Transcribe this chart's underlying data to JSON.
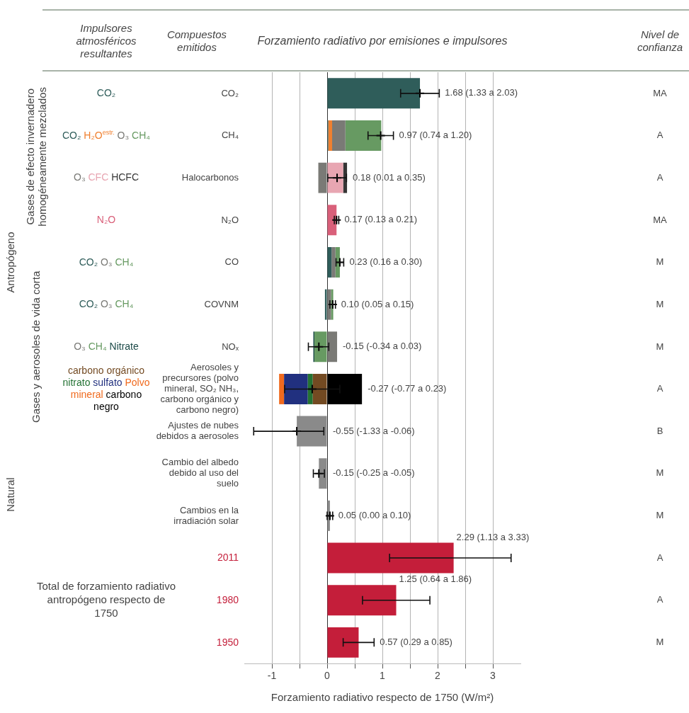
{
  "chart_data": {
    "type": "bar",
    "orientation": "horizontal",
    "stacked": true,
    "title": "Forzamiento radiativo por emisiones e impulsores",
    "xlabel": "Forzamiento radiativo respecto de 1750 (W/m²)",
    "categories": [
      "CO₂",
      "CH₄",
      "Halocarbonos",
      "N₂O",
      "CO",
      "COVNM",
      "NOₓ",
      "Aerosoles y precursores (polvo mineral, SO₂ NH₃, carbono orgánico y carbono negro)",
      "Ajustes de nubes debidos a aerosoles",
      "Cambio del albedo debido al uso del suelo",
      "Cambios en la irradiación solar",
      null,
      null,
      null
    ],
    "series": [
      {
        "name": "CO₂",
        "color": "#2f5d5a",
        "values": [
          1.68,
          0.02,
          null,
          null,
          0.08,
          -0.04,
          null,
          null,
          null,
          null,
          null,
          null,
          null,
          null
        ]
      },
      {
        "name": "H₂O$^{estr.}$",
        "color": "#f08030",
        "values": [
          null,
          0.07,
          null,
          null,
          null,
          null,
          null,
          null,
          null,
          null,
          null,
          null,
          null,
          null
        ]
      },
      {
        "name": "O₃",
        "color": "#7a7a76",
        "values": [
          null,
          0.24,
          -0.16,
          null,
          0.07,
          0.07,
          0.18,
          null,
          null,
          null,
          null,
          null,
          null,
          null
        ]
      },
      {
        "name": "CH₄",
        "color": "#679a62",
        "values": [
          null,
          0.65,
          null,
          null,
          0.08,
          0.04,
          -0.23,
          null,
          null,
          null,
          null,
          null,
          null,
          null
        ]
      },
      {
        "name": "CFC",
        "color": "#e8a6b2",
        "values": [
          null,
          null,
          0.29,
          null,
          null,
          null,
          null,
          null,
          null,
          null,
          null,
          null,
          null,
          null
        ]
      },
      {
        "name": "HCFC",
        "color": "#363636",
        "values": [
          null,
          null,
          0.07,
          null,
          null,
          null,
          null,
          null,
          null,
          null,
          null,
          null,
          null,
          null
        ]
      },
      {
        "name": "N₂O",
        "color": "#d9607a",
        "values": [
          null,
          null,
          null,
          0.17,
          null,
          null,
          null,
          null,
          null,
          null,
          null,
          null,
          null,
          null
        ]
      },
      {
        "name": "Nitrate",
        "color": "#1c4a48",
        "values": [
          null,
          null,
          null,
          null,
          null,
          null,
          -0.02,
          null,
          null,
          null,
          null,
          null,
          null,
          null
        ]
      },
      {
        "name": "carbono orgánico",
        "color": "#734a22",
        "values": [
          null,
          null,
          null,
          null,
          null,
          null,
          null,
          -0.26,
          null,
          null,
          null,
          null,
          null,
          null
        ]
      },
      {
        "name": "nitrato",
        "color": "#237233",
        "values": [
          null,
          null,
          null,
          null,
          null,
          null,
          null,
          -0.09,
          null,
          null,
          null,
          null,
          null,
          null
        ]
      },
      {
        "name": "sulfato",
        "color": "#21307f",
        "values": [
          null,
          null,
          null,
          null,
          null,
          null,
          null,
          -0.43,
          null,
          null,
          null,
          null,
          null,
          null
        ]
      },
      {
        "name": "Polvo mineral",
        "color": "#f06a1e",
        "values": [
          null,
          null,
          null,
          null,
          null,
          null,
          null,
          -0.09,
          null,
          null,
          null,
          null,
          null,
          null
        ]
      },
      {
        "name": "carbono negro",
        "color": "#000000",
        "values": [
          null,
          null,
          null,
          null,
          null,
          null,
          null,
          0.63,
          null,
          null,
          null,
          null,
          null,
          null
        ]
      },
      {
        "color": "#8a8a8a",
        "values": [
          null,
          null,
          null,
          null,
          null,
          null,
          null,
          null,
          -0.55,
          null,
          null,
          null,
          null,
          null
        ]
      },
      {
        "color": "#8a8a8a",
        "values": [
          null,
          null,
          null,
          null,
          null,
          null,
          null,
          null,
          null,
          -0.15,
          null,
          null,
          null,
          null
        ]
      },
      {
        "color": "#8a8a8a",
        "values": [
          null,
          null,
          null,
          null,
          null,
          null,
          null,
          null,
          null,
          null,
          0.05,
          null,
          null,
          null
        ]
      },
      {
        "name": "2011",
        "color": "#c41e3a",
        "values": [
          null,
          null,
          null,
          null,
          null,
          null,
          null,
          null,
          null,
          null,
          null,
          2.29,
          null,
          null
        ],
        "errors": [
          null,
          null,
          null,
          null,
          null,
          null,
          null,
          null,
          null,
          null,
          null,
          [
            1.13,
            3.33
          ],
          null,
          null
        ]
      },
      {
        "name": "1980",
        "color": "#c41e3a",
        "values": [
          null,
          null,
          null,
          null,
          null,
          null,
          null,
          null,
          null,
          null,
          null,
          null,
          1.25,
          null
        ],
        "errors": [
          null,
          null,
          null,
          null,
          null,
          null,
          null,
          null,
          null,
          null,
          null,
          null,
          [
            0.64,
            1.86
          ],
          null
        ]
      },
      {
        "name": "1950",
        "color": "#c41e3a",
        "values": [
          null,
          null,
          null,
          null,
          null,
          null,
          null,
          null,
          null,
          null,
          null,
          null,
          null,
          0.57
        ],
        "errors": [
          null,
          null,
          null,
          null,
          null,
          null,
          null,
          null,
          null,
          null,
          null,
          null,
          null,
          [
            0.29,
            0.85
          ]
        ]
      },
      {
        "type": "scatter",
        "color": "#000000",
        "values": [
          1.68,
          0.97,
          0.18,
          0.17,
          0.23,
          0.1,
          -0.15,
          -0.27,
          -0.55,
          -0.15,
          0.05,
          null,
          null,
          null
        ],
        "errors": [
          [
            1.33,
            2.03
          ],
          [
            0.74,
            1.2
          ],
          [
            0.01,
            0.35
          ],
          [
            0.13,
            0.21
          ],
          [
            0.16,
            0.3
          ],
          [
            0.05,
            0.15
          ],
          [
            -0.34,
            0.03
          ],
          [
            -0.77,
            0.23
          ],
          [
            -1.33,
            -0.06
          ],
          [
            -0.25,
            -0.05
          ],
          [
            0.0,
            0.1
          ],
          null,
          null,
          null
        ]
      }
    ],
    "marker": "cross",
    "xlim": [
      -1.5,
      3.5
    ],
    "xticks": [
      -1,
      {
        "value": -0.5,
        "label": null
      },
      0,
      {
        "value": 0.5,
        "label": null
      },
      1,
      {
        "value": 1.5,
        "label": null
      },
      2,
      {
        "value": 2.5,
        "label": null
      },
      3
    ],
    "grid": "x",
    "totals": [
      "1.68 (1.33 a 2.03)",
      "0.97 (0.74 a 1.20)",
      "0.18 (0.01 a 0.35)",
      "0.17 (0.13 a 0.21)",
      "0.23 (0.16 a 0.30)",
      "0.10 (0.05 a 0.15)",
      "-0.15 (-0.34 a 0.03)",
      "-0.27 (-0.77 a 0.23)",
      "-0.55 (-1.33 a -0.06)",
      "-0.15 (-0.25 a -0.05)",
      "0.05 (0.00 a 0.10)",
      "2.29 (1.13 a 3.33)",
      "1.25 (0.64 a 1.86)",
      "0.57 (0.29 a 0.85)"
    ],
    "annotations": [
      "Compuestos emitidos",
      "Impulsores atmosféricos resultantes",
      "Nivel de confianza",
      "MA",
      "A",
      "A",
      "MA",
      "M",
      "M",
      "M",
      "A",
      "B",
      "M",
      "M",
      "A",
      "A",
      "M",
      "Antropógeno",
      "Natural",
      "Gases de efecto invernadero homogéneamente mezclados",
      "Gases y aerosoles de vida corta",
      "Total de forzamiento radiativo antropógeno respecto de 1750"
    ]
  }
}
